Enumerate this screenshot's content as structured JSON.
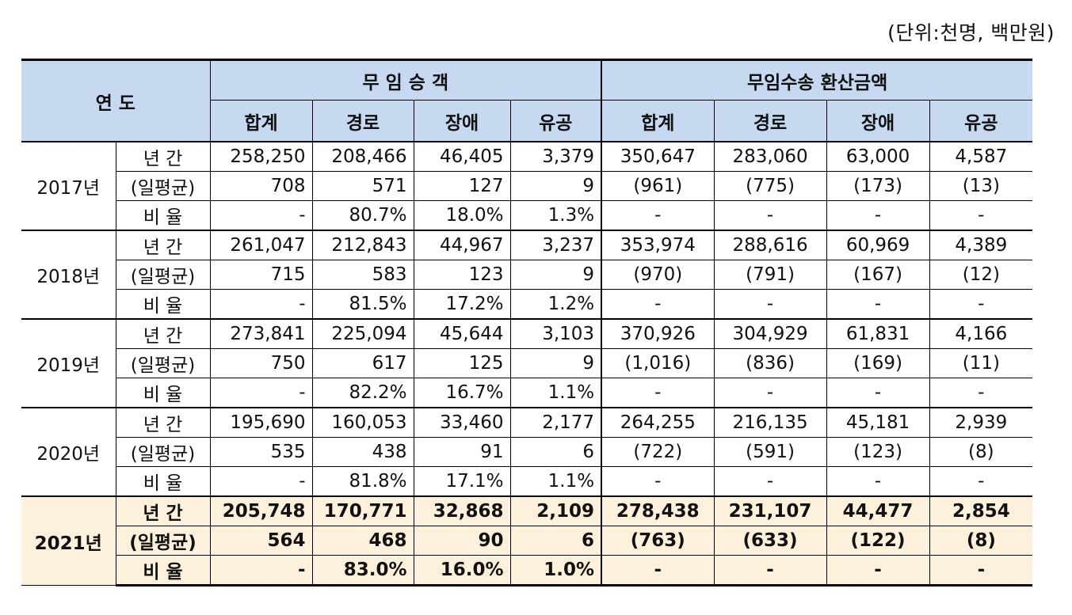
{
  "unit_note": "(단위:천명, 백만원)",
  "header": {
    "year_label": "연 도",
    "group1": "무 임 승 객",
    "group2": "무임수송 환산금액",
    "sub_cols": [
      "합계",
      "경로",
      "장애",
      "유공",
      "합계",
      "경로",
      "장애",
      "유공"
    ]
  },
  "rows": [
    {
      "year": "2017년",
      "lines": [
        {
          "label": "년 간",
          "cells": [
            "258,250",
            "208,466",
            "46,405",
            "3,379",
            "350,647",
            "283,060",
            "63,000",
            "4,587"
          ]
        },
        {
          "label": "(일평균)",
          "cells": [
            "708",
            "571",
            "127",
            "9",
            "(961)",
            "(775)",
            "(173)",
            "(13)"
          ]
        },
        {
          "label": "비 율",
          "cells": [
            "-",
            "80.7%",
            "18.0%",
            "1.3%",
            "-",
            "-",
            "-",
            "-"
          ]
        }
      ]
    },
    {
      "year": "2018년",
      "lines": [
        {
          "label": "년 간",
          "cells": [
            "261,047",
            "212,843",
            "44,967",
            "3,237",
            "353,974",
            "288,616",
            "60,969",
            "4,389"
          ]
        },
        {
          "label": "(일평균)",
          "cells": [
            "715",
            "583",
            "123",
            "9",
            "(970)",
            "(791)",
            "(167)",
            "(12)"
          ]
        },
        {
          "label": "비 율",
          "cells": [
            "-",
            "81.5%",
            "17.2%",
            "1.2%",
            "-",
            "-",
            "-",
            "-"
          ]
        }
      ]
    },
    {
      "year": "2019년",
      "lines": [
        {
          "label": "년 간",
          "cells": [
            "273,841",
            "225,094",
            "45,644",
            "3,103",
            "370,926",
            "304,929",
            "61,831",
            "4,166"
          ]
        },
        {
          "label": "(일평균)",
          "cells": [
            "750",
            "617",
            "125",
            "9",
            "(1,016)",
            "(836)",
            "(169)",
            "(11)"
          ]
        },
        {
          "label": "비 율",
          "cells": [
            "-",
            "82.2%",
            "16.7%",
            "1.1%",
            "-",
            "-",
            "-",
            "-"
          ]
        }
      ]
    },
    {
      "year": "2020년",
      "lines": [
        {
          "label": "년 간",
          "cells": [
            "195,690",
            "160,053",
            "33,460",
            "2,177",
            "264,255",
            "216,135",
            "45,181",
            "2,939"
          ]
        },
        {
          "label": "(일평균)",
          "cells": [
            "535",
            "438",
            "91",
            "6",
            "(722)",
            "(591)",
            "(123)",
            "(8)"
          ]
        },
        {
          "label": "비 율",
          "cells": [
            "-",
            "81.8%",
            "17.1%",
            "1.1%",
            "-",
            "-",
            "-",
            "-"
          ]
        }
      ]
    },
    {
      "year": "2021년",
      "lines": [
        {
          "label": "년 간",
          "cells": [
            "205,748",
            "170,771",
            "32,868",
            "2,109",
            "278,438",
            "231,107",
            "44,477",
            "2,854"
          ]
        },
        {
          "label": "(일평균)",
          "cells": [
            "564",
            "468",
            "90",
            "6",
            "(763)",
            "(633)",
            "(122)",
            "(8)"
          ]
        },
        {
          "label": "비 율",
          "cells": [
            "-",
            "83.0%",
            "16.0%",
            "1.0%",
            "-",
            "-",
            "-",
            "-"
          ]
        }
      ]
    }
  ],
  "colors": {
    "header_bg": "#c6d9f0",
    "highlight_bg": "#fdf1dc"
  }
}
